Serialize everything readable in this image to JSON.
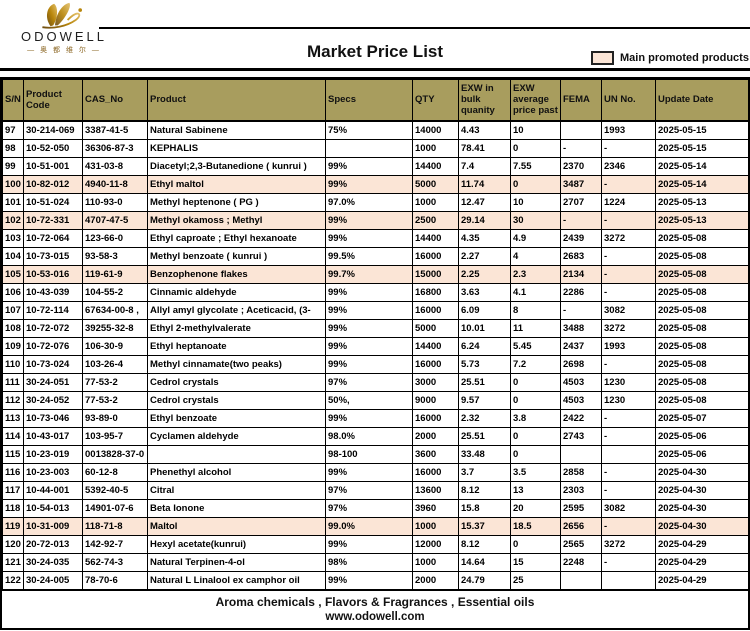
{
  "brand": {
    "name": "ODOWELL",
    "subtitle": "— 奥 都 维 尔 —"
  },
  "header": {
    "title": "Market Price List",
    "legend_label": "Main promoted products"
  },
  "colors": {
    "header_bg": "#A89D5E",
    "highlight": "#FBE5D6",
    "gold": "#B08A2E"
  },
  "table": {
    "column_keys": [
      "sn",
      "product_code",
      "cas_no",
      "product",
      "specs",
      "qty",
      "exw_bulk",
      "exw_avg",
      "fema",
      "un_no",
      "update_date"
    ],
    "headers": [
      "S/N",
      "Product Code",
      "CAS_No",
      "Product",
      "Specs",
      "QTY",
      "EXW in bulk quanity",
      "EXW average price past",
      "FEMA",
      "UN No.",
      "Update Date"
    ],
    "rows": [
      {
        "highlight": false,
        "cells": [
          "97",
          "30-214-069",
          "3387-41-5",
          "Natural Sabinene",
          "75%",
          "14000",
          "4.43",
          "10",
          "",
          "1993",
          "2025-05-15"
        ]
      },
      {
        "highlight": false,
        "cells": [
          "98",
          "10-52-050",
          "36306-87-3",
          "KEPHALIS",
          "",
          "1000",
          "78.41",
          "0",
          "-",
          "-",
          "2025-05-15"
        ]
      },
      {
        "highlight": false,
        "cells": [
          "99",
          "10-51-001",
          "431-03-8",
          "Diacetyl;2,3-Butanedione ( kunrui )",
          "99%",
          "14400",
          "7.4",
          "7.55",
          "2370",
          "2346",
          "2025-05-14"
        ]
      },
      {
        "highlight": true,
        "cells": [
          "100",
          "10-82-012",
          "4940-11-8",
          "Ethyl maltol",
          "99%",
          "5000",
          "11.74",
          "0",
          "3487",
          "-",
          "2025-05-14"
        ]
      },
      {
        "highlight": false,
        "cells": [
          "101",
          "10-51-024",
          "110-93-0",
          "Methyl heptenone ( PG )",
          "97.0%",
          "1000",
          "12.47",
          "10",
          "2707",
          "1224",
          "2025-05-13"
        ]
      },
      {
        "highlight": true,
        "cells": [
          "102",
          "10-72-331",
          "4707-47-5",
          "Methyl okamoss ; Methyl",
          "99%",
          "2500",
          "29.14",
          "30",
          "-",
          "-",
          "2025-05-13"
        ]
      },
      {
        "highlight": false,
        "cells": [
          "103",
          "10-72-064",
          "123-66-0",
          "Ethyl caproate ; Ethyl hexanoate",
          "99%",
          "14400",
          "4.35",
          "4.9",
          "2439",
          "3272",
          "2025-05-08"
        ]
      },
      {
        "highlight": false,
        "cells": [
          "104",
          "10-73-015",
          "93-58-3",
          "Methyl benzoate ( kunrui )",
          "99.5%",
          "16000",
          "2.27",
          "4",
          "2683",
          "-",
          "2025-05-08"
        ]
      },
      {
        "highlight": true,
        "cells": [
          "105",
          "10-53-016",
          "119-61-9",
          "Benzophenone flakes",
          "99.7%",
          "15000",
          "2.25",
          "2.3",
          "2134",
          "-",
          "2025-05-08"
        ]
      },
      {
        "highlight": false,
        "cells": [
          "106",
          "10-43-039",
          "104-55-2",
          "Cinnamic aldehyde",
          "99%",
          "16800",
          "3.63",
          "4.1",
          "2286",
          "-",
          "2025-05-08"
        ]
      },
      {
        "highlight": false,
        "cells": [
          "107",
          "10-72-114",
          "67634-00-8 ,",
          "Allyl amyl glycolate ; Aceticacid, (3-",
          "99%",
          "16000",
          "6.09",
          "8",
          "-",
          "3082",
          "2025-05-08"
        ]
      },
      {
        "highlight": false,
        "cells": [
          "108",
          "10-72-072",
          "39255-32-8",
          "Ethyl 2-methylvalerate",
          "99%",
          "5000",
          "10.01",
          "11",
          "3488",
          "3272",
          "2025-05-08"
        ]
      },
      {
        "highlight": false,
        "cells": [
          "109",
          "10-72-076",
          "106-30-9",
          "Ethyl heptanoate",
          "99%",
          "14400",
          "6.24",
          "5.45",
          "2437",
          "1993",
          "2025-05-08"
        ]
      },
      {
        "highlight": false,
        "cells": [
          "110",
          "10-73-024",
          "103-26-4",
          "Methyl cinnamate(two peaks)",
          "99%",
          "16000",
          "5.73",
          "7.2",
          "2698",
          "-",
          "2025-05-08"
        ]
      },
      {
        "highlight": false,
        "cells": [
          "111",
          "30-24-051",
          "77-53-2",
          "Cedrol crystals",
          "97%",
          "3000",
          "25.51",
          "0",
          "4503",
          "1230",
          "2025-05-08"
        ]
      },
      {
        "highlight": false,
        "cells": [
          "112",
          "30-24-052",
          "77-53-2",
          "Cedrol crystals",
          "50%,",
          "9000",
          "9.57",
          "0",
          "4503",
          "1230",
          "2025-05-08"
        ]
      },
      {
        "highlight": false,
        "cells": [
          "113",
          "10-73-046",
          "93-89-0",
          "Ethyl benzoate",
          "99%",
          "16000",
          "2.32",
          "3.8",
          "2422",
          "-",
          "2025-05-07"
        ]
      },
      {
        "highlight": false,
        "cells": [
          "114",
          "10-43-017",
          "103-95-7",
          "Cyclamen aldehyde",
          "98.0%",
          "2000",
          "25.51",
          "0",
          "2743",
          "-",
          "2025-05-06"
        ]
      },
      {
        "highlight": false,
        "cells": [
          "115",
          "10-23-019",
          "0013828-37-0",
          "",
          "98-100",
          "3600",
          "33.48",
          "0",
          "",
          "",
          "2025-05-06"
        ]
      },
      {
        "highlight": false,
        "cells": [
          "116",
          "10-23-003",
          "60-12-8",
          "Phenethyl alcohol",
          "99%",
          "16000",
          "3.7",
          "3.5",
          "2858",
          "-",
          "2025-04-30"
        ]
      },
      {
        "highlight": false,
        "cells": [
          "117",
          "10-44-001",
          "5392-40-5",
          "Citral",
          "97%",
          "13600",
          "8.12",
          "13",
          "2303",
          "-",
          "2025-04-30"
        ]
      },
      {
        "highlight": false,
        "cells": [
          "118",
          "10-54-013",
          "14901-07-6",
          "Beta Ionone",
          "97%",
          "3960",
          "15.8",
          "20",
          "2595",
          "3082",
          "2025-04-30"
        ]
      },
      {
        "highlight": true,
        "cells": [
          "119",
          "10-31-009",
          "118-71-8",
          "Maltol",
          "99.0%",
          "1000",
          "15.37",
          "18.5",
          "2656",
          "-",
          "2025-04-30"
        ]
      },
      {
        "highlight": false,
        "cells": [
          "120",
          "20-72-013",
          "142-92-7",
          "Hexyl acetate(kunrui)",
          "99%",
          "12000",
          "8.12",
          "0",
          "2565",
          "3272",
          "2025-04-29"
        ]
      },
      {
        "highlight": false,
        "cells": [
          "121",
          "30-24-035",
          "562-74-3",
          "Natural Terpinen-4-ol",
          "98%",
          "1000",
          "14.64",
          "15",
          "2248",
          "-",
          "2025-04-29"
        ]
      },
      {
        "highlight": false,
        "cells": [
          "122",
          "30-24-005",
          "78-70-6",
          "Natural L Linalool ex camphor oil",
          "99%",
          "2000",
          "24.79",
          "25",
          "",
          "",
          "2025-04-29"
        ]
      }
    ]
  },
  "footer": {
    "line1": "Aroma chemicals , Flavors & Fragrances , Essential oils",
    "line2": "www.odowell.com"
  }
}
